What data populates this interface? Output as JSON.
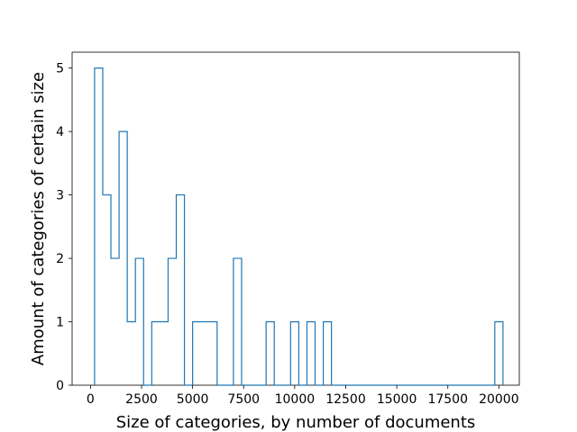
{
  "chart_data": {
    "type": "histogram-step",
    "xlabel": "Size of categories, by number of documents",
    "ylabel": "Amount of categories of certain size",
    "xlim": [
      -900,
      21000
    ],
    "ylim": [
      0,
      5.25
    ],
    "xticks": [
      0,
      2500,
      5000,
      7500,
      10000,
      12500,
      15000,
      17500,
      20000
    ],
    "yticks": [
      0,
      1,
      2,
      3,
      4,
      5
    ],
    "bin_width": 400,
    "bins_start": [
      200,
      600,
      1000,
      1400,
      1800,
      2200,
      2600,
      3000,
      3400,
      3800,
      4200,
      4600,
      5000,
      5400,
      5800,
      6200,
      6600,
      7000,
      7400,
      7800,
      8200,
      8600,
      9000,
      9400,
      9800,
      10200,
      10600,
      11000,
      11400,
      11800,
      12200,
      12600,
      13000,
      13400,
      13800,
      14200,
      14600,
      15000,
      15400,
      15800,
      16200,
      16600,
      17000,
      17400,
      17800,
      18200,
      18600,
      19000,
      19400,
      19800
    ],
    "counts": [
      5,
      3,
      2,
      4,
      1,
      2,
      0,
      1,
      1,
      2,
      3,
      0,
      1,
      1,
      1,
      0,
      0,
      2,
      0,
      0,
      0,
      1,
      0,
      0,
      1,
      0,
      1,
      0,
      1,
      0,
      0,
      0,
      0,
      0,
      0,
      0,
      0,
      0,
      0,
      0,
      0,
      0,
      0,
      0,
      0,
      0,
      0,
      0,
      0,
      1
    ],
    "grid": false,
    "colors": {
      "line": "#1f77b4",
      "axes": "#000000",
      "background": "#ffffff"
    }
  }
}
